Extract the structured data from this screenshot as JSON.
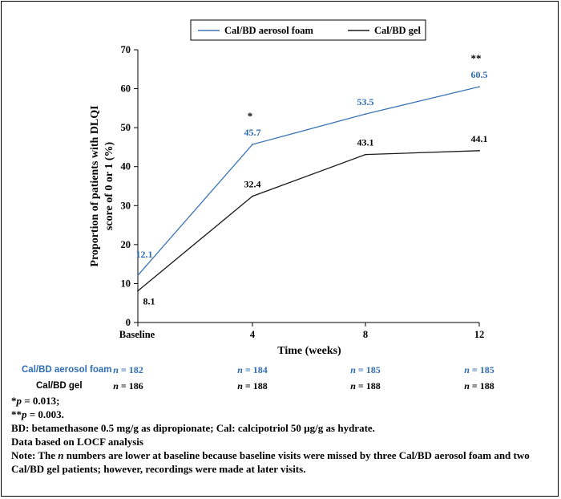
{
  "chart_data": {
    "type": "line",
    "categories": [
      "Baseline",
      "4",
      "8",
      "12"
    ],
    "xlabel": "Time (weeks)",
    "ylabel": "Proportion of patients with DLQI score of 0 or 1 (%)",
    "ylim": [
      0,
      70
    ],
    "yticks": [
      "0",
      "10",
      "20",
      "30",
      "40",
      "50",
      "60",
      "70"
    ],
    "grid": false,
    "legend_position": "top",
    "series": [
      {
        "name": "Cal/BD aerosol foam",
        "values": [
          12.1,
          45.7,
          53.5,
          60.5
        ],
        "labels": [
          "12.1",
          "45.7",
          "53.5",
          "60.5"
        ],
        "color": "#3b75b5"
      },
      {
        "name": "Cal/BD gel",
        "values": [
          8.1,
          32.4,
          43.1,
          44.1
        ],
        "labels": [
          "8.1",
          "32.4",
          "43.1",
          "44.1"
        ],
        "color": "#1a1a1a"
      }
    ],
    "annotations": [
      {
        "category": "4",
        "text": "*"
      },
      {
        "category": "12",
        "text": "**"
      }
    ]
  },
  "n_table": [
    {
      "label": "Cal/BD aerosol foam",
      "color": "#2e6db4",
      "values": [
        "182",
        "184",
        "185",
        "185"
      ]
    },
    {
      "label": "Cal/BD gel",
      "color": "#000000",
      "values": [
        "186",
        "188",
        "188",
        "188"
      ]
    }
  ],
  "n_prefix": "n",
  "notes": {
    "p1_value": " = 0.013;",
    "p2_value": " = 0.003.",
    "p_symbol": "p",
    "bd": "BD: betamethasone 0.5 mg/g as dipropionate; Cal: calcipotriol 50 µg/g as hydrate.",
    "locf": "Data based on LOCF analysis",
    "note_pre": "Note: The ",
    "note_n": "n",
    "note_post": " numbers are lower at baseline because baseline visits were missed by three Cal/BD aerosol foam and two Cal/BD gel patients; however, recordings were made at later visits."
  }
}
